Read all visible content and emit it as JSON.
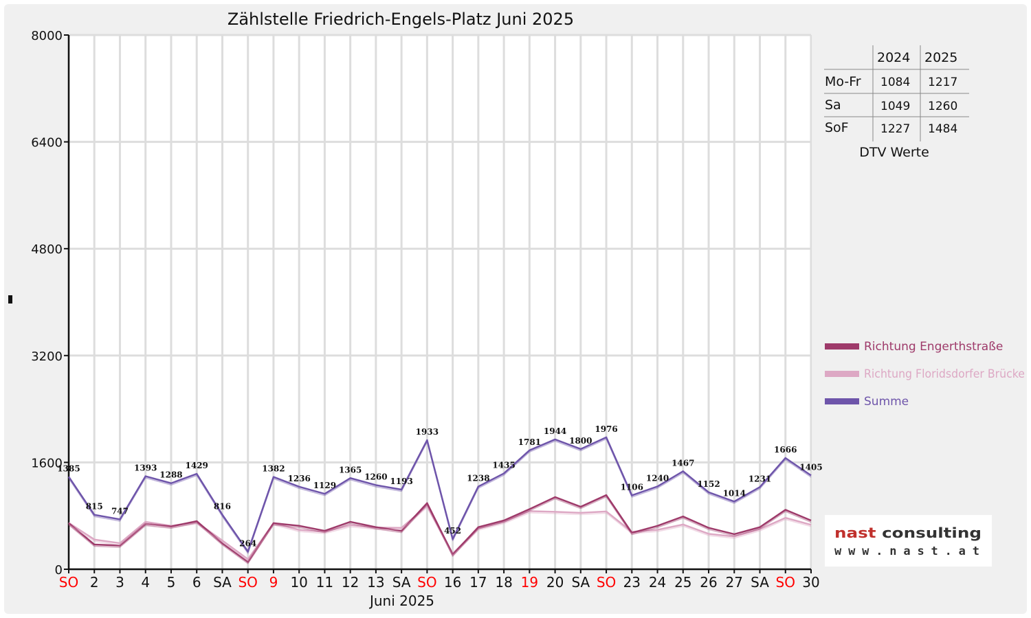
{
  "chart_data": {
    "type": "line",
    "title": "Zählstelle Friedrich-Engels-Platz Juni 2025",
    "xlabel": "Juni 2025",
    "ylabel": "",
    "ylim": [
      0,
      8000
    ],
    "yticks": [
      "0",
      "1600",
      "3200",
      "4800",
      "6400",
      "8000"
    ],
    "grid": true,
    "legend_position": "right",
    "categories": [
      "SO",
      "2",
      "3",
      "4",
      "5",
      "6",
      "SA",
      "SO",
      "9",
      "10",
      "11",
      "12",
      "13",
      "SA",
      "SO",
      "16",
      "17",
      "18",
      "19",
      "20",
      "SA",
      "SO",
      "23",
      "24",
      "25",
      "26",
      "27",
      "SA",
      "SO",
      "30"
    ],
    "red_categories": [
      0,
      7,
      8,
      14,
      18,
      21,
      28
    ],
    "series": [
      {
        "name": "Richtung Engerthstraße",
        "color": "#9e3a6a",
        "values": [
          690,
          370,
          355,
          680,
          640,
          720,
          390,
          110,
          690,
          650,
          575,
          710,
          630,
          575,
          990,
          220,
          630,
          730,
          900,
          1080,
          935,
          1110,
          545,
          650,
          790,
          620,
          525,
          630,
          890,
          730
        ]
      },
      {
        "name": "Richtung Floridsdorfer Brücke",
        "color": "#dda8c4",
        "values": [
          695,
          445,
          390,
          710,
          650,
          705,
          430,
          150,
          690,
          590,
          560,
          660,
          625,
          620,
          950,
          235,
          610,
          710,
          870,
          860,
          845,
          865,
          560,
          590,
          670,
          530,
          490,
          600,
          770,
          665
        ]
      },
      {
        "name": "Summe",
        "color": "#6e55aa",
        "values": [
          1385,
          815,
          747,
          1393,
          1288,
          1429,
          816,
          264,
          1382,
          1236,
          1129,
          1365,
          1260,
          1193,
          1933,
          452,
          1238,
          1435,
          1781,
          1944,
          1800,
          1976,
          1106,
          1240,
          1467,
          1152,
          1014,
          1231,
          1666,
          1405
        ],
        "labels": [
          "1385",
          "815",
          "747",
          "1393",
          "1288",
          "1429",
          "816",
          "264",
          "1382",
          "1236",
          "1129",
          "1365",
          "1260",
          "1193",
          "1933",
          "452",
          "1238",
          "1435",
          "1781",
          "1944",
          "1800",
          "1976",
          "1106",
          "1240",
          "1467",
          "1152",
          "1014",
          "1231",
          "1666",
          "1405"
        ]
      }
    ]
  },
  "dtv_table": {
    "headers": [
      "2024",
      "2025"
    ],
    "rows": [
      {
        "label": "Mo-Fr",
        "v2024": "1084",
        "v2025": "1217"
      },
      {
        "label": "Sa",
        "v2024": "1049",
        "v2025": "1260"
      },
      {
        "label": "SoF",
        "v2024": "1227",
        "v2025": "1484"
      }
    ],
    "caption": "DTV Werte"
  },
  "logo": {
    "main": "nast consulting",
    "sub": "www.nast.at"
  },
  "colors": {
    "weekend_red": "#ff0000",
    "grid": "#dddddd",
    "background": "#f0f0f0"
  }
}
